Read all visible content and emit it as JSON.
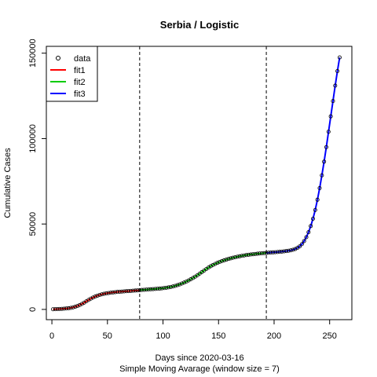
{
  "chart_data": {
    "type": "scatter",
    "title": "Serbia / Logistic",
    "xlabel": "Days since 2020-03-16",
    "subtitle": "Simple Moving Avarage (window size = 7)",
    "ylabel": "Cumulative Cases",
    "xlim": [
      -5,
      270
    ],
    "ylim": [
      -6000,
      154000
    ],
    "xticks": [
      0,
      50,
      100,
      150,
      200,
      250
    ],
    "yticks": [
      0,
      50000,
      100000,
      150000
    ],
    "grid": false,
    "legend_position": "top-left",
    "legend": [
      {
        "label": "data",
        "kind": "point",
        "color": "#000000"
      },
      {
        "label": "fit1",
        "kind": "line",
        "color": "#ff0000"
      },
      {
        "label": "fit2",
        "kind": "line",
        "color": "#00cc00"
      },
      {
        "label": "fit3",
        "kind": "line",
        "color": "#0000ff"
      }
    ],
    "vlines": [
      79,
      193
    ],
    "data_points": [
      [
        1,
        100
      ],
      [
        3,
        150
      ],
      [
        5,
        200
      ],
      [
        7,
        260
      ],
      [
        9,
        330
      ],
      [
        11,
        420
      ],
      [
        13,
        540
      ],
      [
        15,
        700
      ],
      [
        17,
        920
      ],
      [
        19,
        1200
      ],
      [
        21,
        1560
      ],
      [
        23,
        2000
      ],
      [
        25,
        2550
      ],
      [
        27,
        3200
      ],
      [
        29,
        3950
      ],
      [
        31,
        4750
      ],
      [
        33,
        5550
      ],
      [
        35,
        6300
      ],
      [
        37,
        6950
      ],
      [
        39,
        7550
      ],
      [
        41,
        8050
      ],
      [
        43,
        8500
      ],
      [
        45,
        8850
      ],
      [
        47,
        9150
      ],
      [
        49,
        9400
      ],
      [
        51,
        9600
      ],
      [
        53,
        9800
      ],
      [
        55,
        9950
      ],
      [
        57,
        10100
      ],
      [
        59,
        10250
      ],
      [
        61,
        10350
      ],
      [
        63,
        10450
      ],
      [
        65,
        10550
      ],
      [
        67,
        10650
      ],
      [
        69,
        10750
      ],
      [
        71,
        10850
      ],
      [
        73,
        10950
      ],
      [
        75,
        11050
      ],
      [
        77,
        11150
      ],
      [
        79,
        11250
      ],
      [
        81,
        11400
      ],
      [
        83,
        11500
      ],
      [
        85,
        11600
      ],
      [
        87,
        11700
      ],
      [
        89,
        11800
      ],
      [
        91,
        11900
      ],
      [
        93,
        12000
      ],
      [
        95,
        12100
      ],
      [
        97,
        12200
      ],
      [
        99,
        12350
      ],
      [
        101,
        12500
      ],
      [
        103,
        12700
      ],
      [
        105,
        12900
      ],
      [
        107,
        13150
      ],
      [
        109,
        13450
      ],
      [
        111,
        13800
      ],
      [
        113,
        14200
      ],
      [
        115,
        14650
      ],
      [
        117,
        15150
      ],
      [
        119,
        15700
      ],
      [
        121,
        16300
      ],
      [
        123,
        16950
      ],
      [
        125,
        17650
      ],
      [
        127,
        18400
      ],
      [
        129,
        19200
      ],
      [
        131,
        20050
      ],
      [
        133,
        20950
      ],
      [
        135,
        21850
      ],
      [
        137,
        22750
      ],
      [
        139,
        23650
      ],
      [
        141,
        24500
      ],
      [
        143,
        25300
      ],
      [
        145,
        26000
      ],
      [
        147,
        26650
      ],
      [
        149,
        27250
      ],
      [
        151,
        27800
      ],
      [
        153,
        28300
      ],
      [
        155,
        28750
      ],
      [
        157,
        29150
      ],
      [
        159,
        29550
      ],
      [
        161,
        29900
      ],
      [
        163,
        30250
      ],
      [
        165,
        30550
      ],
      [
        167,
        30850
      ],
      [
        169,
        31100
      ],
      [
        171,
        31350
      ],
      [
        173,
        31600
      ],
      [
        175,
        31800
      ],
      [
        177,
        32000
      ],
      [
        179,
        32150
      ],
      [
        181,
        32300
      ],
      [
        183,
        32450
      ],
      [
        185,
        32600
      ],
      [
        187,
        32750
      ],
      [
        189,
        32850
      ],
      [
        191,
        32950
      ],
      [
        193,
        33050
      ],
      [
        195,
        33200
      ],
      [
        197,
        33300
      ],
      [
        199,
        33400
      ],
      [
        201,
        33500
      ],
      [
        203,
        33600
      ],
      [
        205,
        33700
      ],
      [
        207,
        33850
      ],
      [
        209,
        34000
      ],
      [
        211,
        34150
      ],
      [
        213,
        34350
      ],
      [
        215,
        34600
      ],
      [
        217,
        34900
      ],
      [
        219,
        35350
      ],
      [
        221,
        36000
      ],
      [
        223,
        36900
      ],
      [
        225,
        38200
      ],
      [
        227,
        40000
      ],
      [
        229,
        42300
      ],
      [
        231,
        45200
      ],
      [
        233,
        48800
      ],
      [
        235,
        53100
      ],
      [
        237,
        58200
      ],
      [
        239,
        64200
      ],
      [
        241,
        71000
      ],
      [
        243,
        78500
      ],
      [
        245,
        86500
      ],
      [
        247,
        95000
      ],
      [
        249,
        104000
      ],
      [
        251,
        113000
      ],
      [
        253,
        122000
      ],
      [
        255,
        131000
      ],
      [
        257,
        139500
      ],
      [
        259,
        147500
      ]
    ]
  }
}
